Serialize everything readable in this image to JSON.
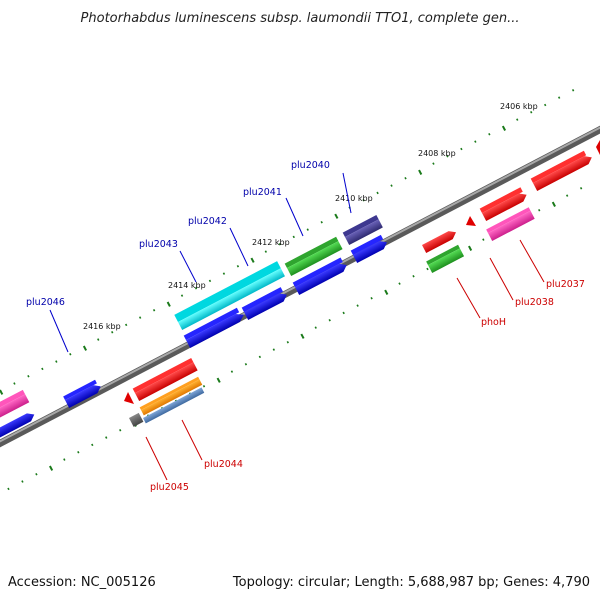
{
  "title": "Photorhabdus luminescens subsp. laumondii TTO1, complete gen...",
  "footer": {
    "accession": "Accession: NC_005126",
    "summary": "Topology: circular; Length: 5,688,987 bp; Genes: 4,790"
  },
  "colors": {
    "backbone": "#808080",
    "ticks": "#1a7a1a",
    "label_blue": "#0000aa",
    "label_red": "#cc0000",
    "leader_blue": "#0000cc",
    "leader_red": "#cc0000"
  },
  "scale_labels": [
    "2406 kbp",
    "2408 kbp",
    "2410 kbp",
    "2412 kbp",
    "2414 kbp",
    "2416 kbp"
  ],
  "gene_labels_top": [
    "plu2040",
    "plu2041",
    "plu2042",
    "plu2043",
    "plu2046"
  ],
  "gene_labels_bottom": [
    "plu2037",
    "plu2038",
    "phoH",
    "plu2044",
    "plu2045"
  ]
}
